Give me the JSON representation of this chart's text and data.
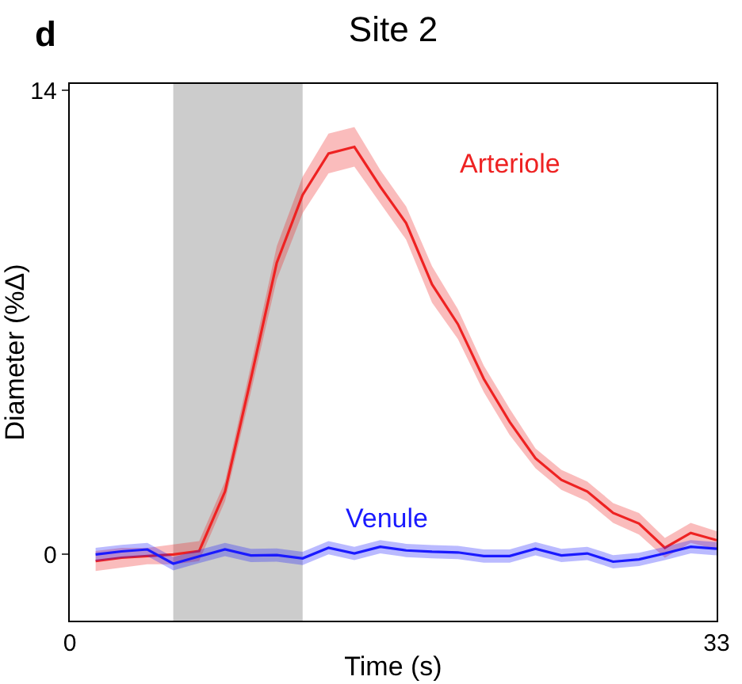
{
  "chart_data": {
    "type": "line",
    "title": "Site 2",
    "xlabel": "Time (s)",
    "ylabel": "Diameter (%Δ)",
    "annotations": [
      "d"
    ],
    "x": [
      1.32,
      2.64,
      3.96,
      5.28,
      6.6,
      7.92,
      9.24,
      10.56,
      11.88,
      13.2,
      14.52,
      15.84,
      17.16,
      18.48,
      19.8,
      21.12,
      22.44,
      23.76,
      25.08,
      26.4,
      27.72,
      29.04,
      30.36,
      31.68,
      33
    ],
    "series": [
      {
        "name": "Arteriole",
        "color": "#ee2222",
        "values": [
          -0.2,
          -0.1,
          -0.05,
          0,
          0.1,
          1.9,
          5.3,
          8.8,
          10.85,
          12.1,
          12.3,
          11.1,
          10.0,
          8.15,
          6.95,
          5.3,
          4.0,
          2.9,
          2.25,
          1.9,
          1.25,
          0.93,
          0.2,
          0.65,
          0.43
        ],
        "lower": [
          -0.5,
          -0.4,
          -0.3,
          -0.3,
          -0.2,
          1.6,
          4.9,
          8.3,
          10.3,
          11.5,
          11.7,
          10.6,
          9.5,
          7.6,
          6.5,
          4.9,
          3.6,
          2.6,
          1.95,
          1.6,
          0.95,
          0.6,
          -0.1,
          0.35,
          0.15
        ],
        "upper": [
          0.1,
          0.2,
          0.2,
          0.3,
          0.4,
          2.2,
          5.7,
          9.3,
          11.4,
          12.7,
          12.9,
          11.6,
          10.5,
          8.7,
          7.4,
          5.7,
          4.4,
          3.2,
          2.55,
          2.2,
          1.55,
          1.25,
          0.5,
          0.95,
          0.7
        ]
      },
      {
        "name": "Venule",
        "color": "#1a1aff",
        "values": [
          0,
          0.09,
          0.15,
          -0.28,
          -0.06,
          0.15,
          -0.03,
          -0.02,
          -0.12,
          0.2,
          0.03,
          0.23,
          0.12,
          0.08,
          0.06,
          -0.05,
          -0.05,
          0.17,
          -0.03,
          0.03,
          -0.22,
          -0.15,
          0.03,
          0.23,
          0.17
        ],
        "lower": [
          -0.2,
          -0.11,
          -0.05,
          -0.48,
          -0.26,
          -0.05,
          -0.23,
          -0.22,
          -0.32,
          0,
          -0.17,
          0.03,
          -0.08,
          -0.12,
          -0.14,
          -0.25,
          -0.25,
          -0.03,
          -0.23,
          -0.17,
          -0.42,
          -0.35,
          -0.17,
          0.03,
          -0.03
        ],
        "upper": [
          0.2,
          0.29,
          0.35,
          -0.08,
          0.14,
          0.35,
          0.17,
          0.18,
          0.08,
          0.4,
          0.23,
          0.43,
          0.32,
          0.28,
          0.26,
          0.15,
          0.15,
          0.37,
          0.17,
          0.23,
          -0.02,
          0.05,
          0.23,
          0.43,
          0.37
        ]
      }
    ],
    "bands": [
      {
        "axis": "x",
        "from": 5.28,
        "to": 11.88,
        "color": "#cccccc"
      }
    ],
    "xlim": [
      0,
      33
    ],
    "xticks": [
      0,
      33
    ],
    "ylim": [
      -2,
      14.2
    ],
    "yticks": [
      0,
      14
    ],
    "grid": false,
    "legend": false,
    "marker": "none",
    "line_style": "solid"
  }
}
